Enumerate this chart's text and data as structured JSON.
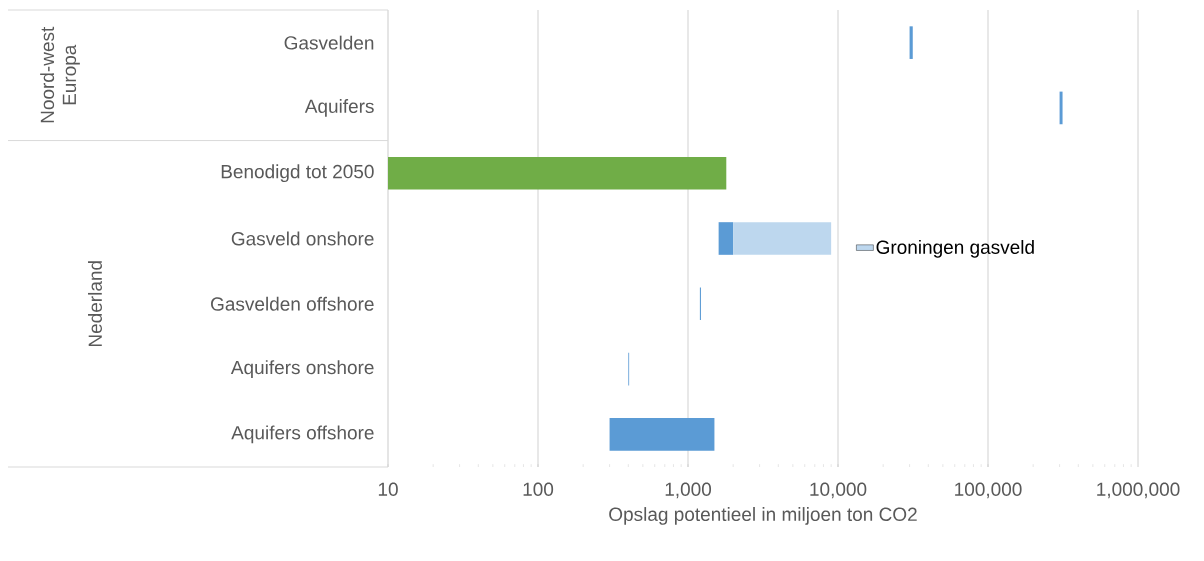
{
  "chart_data": {
    "type": "bar",
    "orientation": "horizontal",
    "log": "x",
    "grid": "x",
    "legend": "right",
    "xlabel": "Opslag potentieel in miljoen ton CO2",
    "categories": [
      "Gasvelden",
      "Aquifers",
      "Benodigd tot 2050",
      "Gasveld onshore",
      "Gasvelden offshore",
      "Aquifers onshore",
      "Aquifers offshore"
    ],
    "annotations": [
      "Noord-west Europa",
      "Nederland"
    ],
    "xlim": [
      10,
      1000000
    ],
    "xticks": [
      10,
      100,
      {
        "value": 1000,
        "label": "1,000"
      },
      {
        "value": 10000,
        "label": "10,000"
      },
      {
        "value": 100000,
        "label": "100,000"
      },
      {
        "value": 1000000,
        "label": "1,000,000"
      }
    ],
    "series": [
      {
        "colors": [
          "#5b9bd5",
          "#5b9bd5",
          "#70ad47",
          "#5b9bd5",
          "#5b9bd5",
          "#5b9bd5",
          "#5b9bd5"
        ],
        "base": [
          30000,
          300000,
          10,
          1600,
          1200,
          400,
          300
        ],
        "values": [
          1500,
          14000,
          1790,
          400,
          20,
          5,
          1200
        ]
      },
      {
        "name": "Groningen gasveld",
        "color": "#bdd7ee",
        "base": [
          null,
          null,
          null,
          2000,
          null,
          null,
          null
        ],
        "values": [
          null,
          null,
          null,
          7000,
          null,
          null,
          null
        ]
      }
    ]
  }
}
